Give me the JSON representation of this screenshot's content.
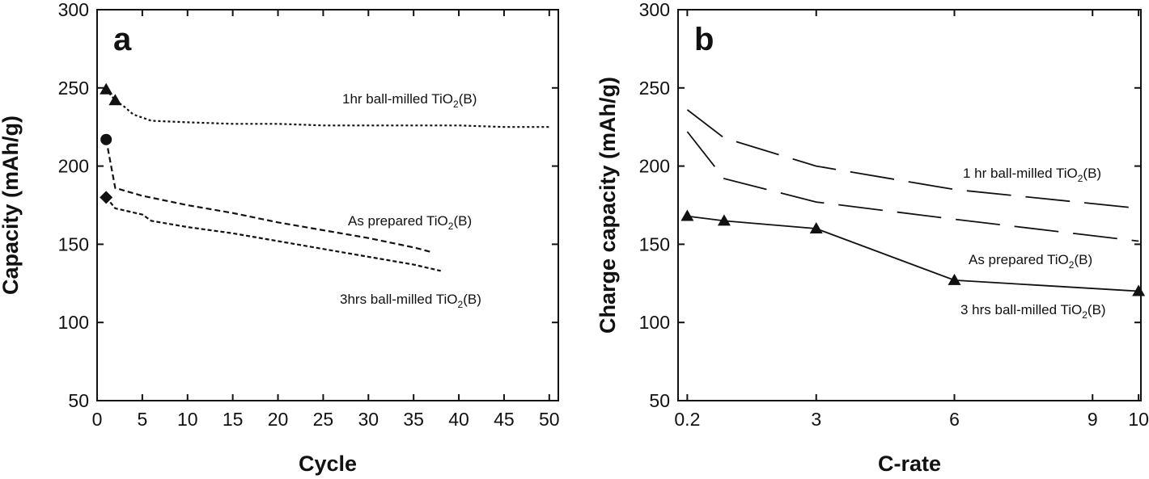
{
  "chart_data": [
    {
      "type": "line",
      "panel": "a",
      "xlabel": "Cycle",
      "ylabel": "Capacity (mAh/g)",
      "xlim": [
        0,
        51
      ],
      "ylim": [
        50,
        300
      ],
      "xticks": [
        0,
        5,
        10,
        15,
        20,
        25,
        30,
        35,
        40,
        45,
        50
      ],
      "yticks": [
        50,
        100,
        150,
        200,
        250,
        300
      ],
      "grid": false,
      "series": [
        {
          "name": "1hr ball-milled TiO2(B)",
          "label": {
            "base": "1hr ball-milled TiO",
            "sub": "2",
            "tail": "(B)"
          },
          "marker": "triangle",
          "x": [
            1,
            2,
            3,
            4,
            6,
            10,
            15,
            20,
            25,
            30,
            35,
            40,
            45,
            50
          ],
          "y": [
            249,
            242,
            238,
            233,
            229,
            228,
            227,
            227,
            226,
            226,
            226,
            226,
            225,
            225
          ]
        },
        {
          "name": "As prepared TiO2(B)",
          "label": {
            "base": "As prepared TiO",
            "sub": "2",
            "tail": "(B)"
          },
          "marker": "circle",
          "x": [
            1,
            2,
            5,
            10,
            15,
            20,
            25,
            30,
            35,
            37
          ],
          "y": [
            217,
            186,
            181,
            175,
            170,
            164,
            159,
            154,
            148,
            145
          ]
        },
        {
          "name": "3hrs ball-milled TiO2(B)",
          "label": {
            "base": "3hrs ball-milled TiO",
            "sub": "2",
            "tail": "(B)"
          },
          "marker": "diamond",
          "x": [
            1,
            2,
            5,
            6,
            10,
            15,
            20,
            25,
            30,
            35,
            38
          ],
          "y": [
            180,
            173,
            169,
            165,
            161,
            157,
            152,
            147,
            142,
            137,
            133
          ]
        }
      ]
    },
    {
      "type": "line",
      "panel": "b",
      "xlabel": "C-rate",
      "ylabel": "Charge capacity (mAh/g)",
      "xlim": [
        0,
        10.05
      ],
      "ylim": [
        50,
        300
      ],
      "xticks": [
        0.2,
        3,
        6,
        9,
        10
      ],
      "yticks": [
        50,
        100,
        150,
        200,
        250,
        300
      ],
      "grid": false,
      "series": [
        {
          "name": "1 hr ball-milled TiO2(B)",
          "label": {
            "base": "1 hr ball-milled TiO",
            "sub": "2",
            "tail": "(B)"
          },
          "style": "long-dash",
          "x": [
            0.2,
            1,
            3,
            6,
            10
          ],
          "y": [
            236,
            218,
            200,
            185,
            173
          ]
        },
        {
          "name": "As prepared TiO2(B)",
          "label": {
            "base": "As prepared TiO",
            "sub": "2",
            "tail": "(B)"
          },
          "style": "long-dash",
          "x": [
            0.2,
            1,
            3,
            6,
            10
          ],
          "y": [
            222,
            192,
            177,
            166,
            152
          ]
        },
        {
          "name": "3 hrs ball-milled TiO2(B)",
          "label": {
            "base": "3 hrs ball-milled TiO",
            "sub": "2",
            "tail": "(B)"
          },
          "style": "solid",
          "marker": "triangle",
          "x": [
            0.2,
            1,
            3,
            6,
            10
          ],
          "y": [
            168,
            165,
            160,
            127,
            120
          ]
        }
      ]
    }
  ]
}
